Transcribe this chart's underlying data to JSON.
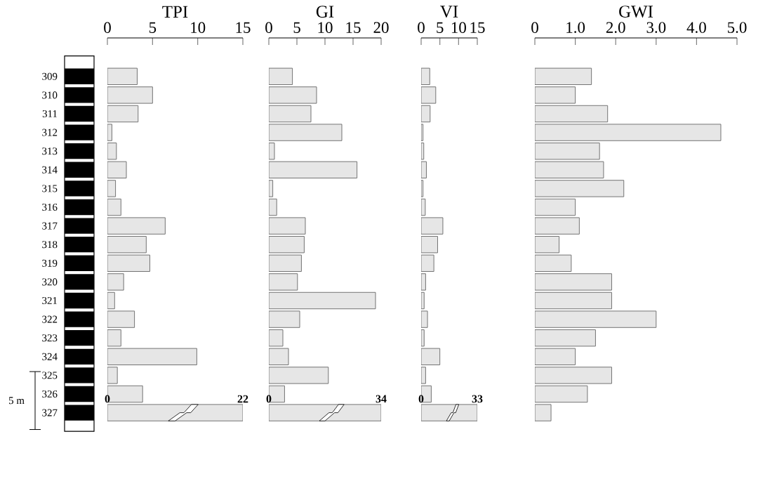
{
  "chart_data": [
    {
      "type": "bar",
      "orientation": "horizontal",
      "title": "TPI",
      "color": "#e6e6e6",
      "categories": [
        "309",
        "310",
        "311",
        "312",
        "313",
        "314",
        "315",
        "316",
        "317",
        "318",
        "319",
        "320",
        "321",
        "322",
        "323",
        "324",
        "325",
        "326"
      ],
      "values": [
        3.3,
        5.0,
        3.4,
        0.5,
        1.0,
        2.1,
        0.9,
        1.5,
        6.4,
        4.3,
        4.7,
        1.8,
        0.8,
        3.0,
        1.5,
        9.9,
        1.1,
        3.9
      ],
      "xlim": [
        0,
        15
      ],
      "xticks": [
        0,
        5,
        10,
        15
      ],
      "annotations": [
        "5 m"
      ]
    },
    {
      "type": "bar",
      "orientation": "horizontal",
      "title": "GI",
      "color": "#e6e6e6",
      "tick_labels": "x",
      "categories": [
        "309",
        "310",
        "311",
        "312",
        "313",
        "314",
        "315",
        "316",
        "317",
        "318",
        "319",
        "320",
        "321",
        "322",
        "323",
        "324",
        "325",
        "326"
      ],
      "values": [
        4.2,
        8.5,
        7.5,
        13.0,
        1.0,
        15.7,
        0.7,
        1.4,
        6.5,
        6.3,
        5.8,
        5.1,
        19.0,
        5.5,
        2.5,
        3.5,
        10.6,
        2.8
      ],
      "xlim": [
        0,
        20
      ],
      "xticks": [
        0,
        5,
        10,
        15,
        20
      ]
    },
    {
      "type": "bar",
      "orientation": "horizontal",
      "title": "VI",
      "color": "#e6e6e6",
      "tick_labels": "x",
      "categories": [
        "309",
        "310",
        "311",
        "312",
        "313",
        "314",
        "315",
        "316",
        "317",
        "318",
        "319",
        "320",
        "321",
        "322",
        "323",
        "324",
        "325",
        "326"
      ],
      "values": [
        2.3,
        3.9,
        2.4,
        0.5,
        0.7,
        1.4,
        0.5,
        1.1,
        5.8,
        4.4,
        3.4,
        1.2,
        0.8,
        1.7,
        0.8,
        5.0,
        1.2,
        2.7
      ],
      "xlim": [
        0,
        15
      ],
      "xticks": [
        0,
        5,
        10,
        15
      ]
    },
    {
      "type": "bar",
      "orientation": "horizontal",
      "title": "GWI",
      "color": "#e6e6e6",
      "tick_labels": "x",
      "categories": [
        "309",
        "310",
        "311",
        "312",
        "313",
        "314",
        "315",
        "316",
        "317",
        "318",
        "319",
        "320",
        "321",
        "322",
        "323",
        "324",
        "325",
        "326",
        "327"
      ],
      "values": [
        1.4,
        1.0,
        1.8,
        4.6,
        1.6,
        1.7,
        2.2,
        1.0,
        1.1,
        0.6,
        0.9,
        1.9,
        1.9,
        3.0,
        1.5,
        1.0,
        1.9,
        1.3,
        0.4
      ],
      "xlim": [
        0,
        5
      ],
      "xticks": [
        0,
        {
          "value": 1,
          "label": "1.0"
        },
        {
          "value": 2,
          "label": "2.0"
        },
        {
          "value": 3,
          "label": "3.0"
        },
        {
          "value": 4,
          "label": "4.0"
        },
        {
          "value": 5,
          "label": "5.0"
        }
      ]
    },
    {
      "type": "bar",
      "orientation": "horizontal",
      "color": "#e6e6e6",
      "categories": [
        "327"
      ],
      "values": [
        22
      ],
      "xlim": [
        0,
        22
      ],
      "xticks": [
        0,
        22
      ]
    },
    {
      "type": "bar",
      "orientation": "horizontal",
      "color": "#e6e6e6",
      "tick_labels": "x",
      "categories": [
        "327"
      ],
      "values": [
        34
      ],
      "xlim": [
        0,
        34
      ],
      "xticks": [
        0,
        34
      ]
    },
    {
      "type": "bar",
      "orientation": "horizontal",
      "color": "#e6e6e6",
      "tick_labels": "x",
      "categories": [
        "327"
      ],
      "values": [
        33
      ],
      "xlim": [
        0,
        33
      ],
      "xticks": [
        0,
        33
      ]
    }
  ]
}
